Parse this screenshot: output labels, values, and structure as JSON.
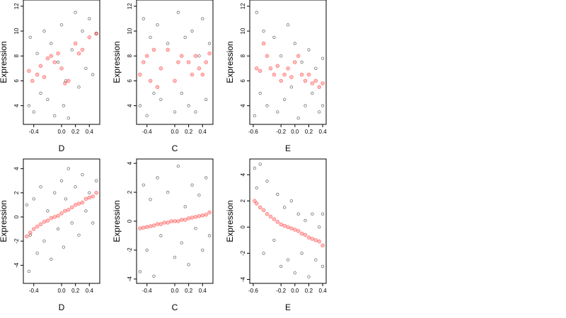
{
  "chart_data": [
    {
      "type": "scatter",
      "xlabel": "D",
      "ylabel": "Expression",
      "xlim": [
        -0.55,
        0.55
      ],
      "ylim": [
        2.5,
        12.5
      ],
      "xticks": [
        "-0.4",
        "0.0",
        "0.2",
        "0.4"
      ],
      "yticks": [
        "4",
        "6",
        "8",
        "10",
        "12"
      ],
      "series": [
        {
          "points": [
            [
              -0.47,
              4.0
            ],
            [
              -0.45,
              9.5
            ],
            [
              -0.4,
              3.5
            ],
            [
              -0.35,
              8.2
            ],
            [
              -0.3,
              5.0
            ],
            [
              -0.25,
              10.0
            ],
            [
              -0.2,
              4.5
            ],
            [
              -0.15,
              9.0
            ],
            [
              -0.1,
              3.2
            ],
            [
              -0.05,
              7.5
            ],
            [
              0.0,
              10.5
            ],
            [
              0.03,
              4.0
            ],
            [
              0.06,
              6.0
            ],
            [
              0.1,
              3.0
            ],
            [
              0.15,
              8.5
            ],
            [
              0.2,
              11.5
            ],
            [
              0.25,
              5.5
            ],
            [
              0.3,
              10.0
            ],
            [
              0.35,
              7.0
            ],
            [
              0.4,
              11.0
            ],
            [
              0.45,
              6.5
            ],
            [
              0.5,
              9.8
            ]
          ]
        },
        {
          "points": [
            [
              -0.47,
              6.8
            ],
            [
              -0.42,
              6.0
            ],
            [
              -0.35,
              6.5
            ],
            [
              -0.3,
              7.2
            ],
            [
              -0.25,
              6.3
            ],
            [
              -0.2,
              7.8
            ],
            [
              -0.15,
              8.0
            ],
            [
              -0.1,
              7.5
            ],
            [
              -0.05,
              8.2
            ],
            [
              0.0,
              7.0
            ],
            [
              0.05,
              5.8
            ],
            [
              0.1,
              6.0
            ],
            [
              0.2,
              9.0
            ],
            [
              0.25,
              8.2
            ],
            [
              0.3,
              8.5
            ],
            [
              0.4,
              9.5
            ],
            [
              0.5,
              9.8
            ]
          ]
        }
      ]
    },
    {
      "type": "scatter",
      "xlabel": "C",
      "ylabel": "Expression",
      "xlim": [
        -0.55,
        0.55
      ],
      "ylim": [
        2.5,
        12.5
      ],
      "xticks": [
        "-0.4",
        "0.0",
        "0.2",
        "0.4"
      ],
      "yticks": [
        "4",
        "6",
        "8",
        "10",
        "12"
      ],
      "series": [
        {
          "points": [
            [
              -0.5,
              4.0
            ],
            [
              -0.45,
              11.0
            ],
            [
              -0.4,
              3.2
            ],
            [
              -0.35,
              9.5
            ],
            [
              -0.3,
              5.0
            ],
            [
              -0.25,
              10.5
            ],
            [
              -0.2,
              4.5
            ],
            [
              -0.1,
              9.0
            ],
            [
              0.0,
              3.5
            ],
            [
              0.05,
              11.5
            ],
            [
              0.1,
              5.0
            ],
            [
              0.15,
              9.5
            ],
            [
              0.2,
              4.0
            ],
            [
              0.25,
              10.0
            ],
            [
              0.3,
              3.5
            ],
            [
              0.35,
              8.0
            ],
            [
              0.4,
              11.0
            ],
            [
              0.45,
              4.5
            ],
            [
              0.5,
              9.0
            ]
          ]
        },
        {
          "points": [
            [
              -0.5,
              6.5
            ],
            [
              -0.45,
              7.5
            ],
            [
              -0.4,
              8.0
            ],
            [
              -0.35,
              6.0
            ],
            [
              -0.3,
              8.5
            ],
            [
              -0.25,
              5.5
            ],
            [
              -0.2,
              7.0
            ],
            [
              -0.1,
              8.5
            ],
            [
              0.0,
              6.0
            ],
            [
              0.05,
              7.5
            ],
            [
              0.1,
              8.0
            ],
            [
              0.2,
              7.5
            ],
            [
              0.25,
              6.5
            ],
            [
              0.3,
              8.0
            ],
            [
              0.35,
              7.0
            ],
            [
              0.4,
              6.5
            ],
            [
              0.45,
              7.5
            ],
            [
              0.5,
              8.2
            ]
          ]
        }
      ]
    },
    {
      "type": "scatter",
      "xlabel": "E",
      "ylabel": "Expression",
      "xlim": [
        -0.65,
        0.45
      ],
      "ylim": [
        2.5,
        12.5
      ],
      "xticks": [
        "-0.6",
        "-0.2",
        "0.0",
        "0.2",
        "0.4"
      ],
      "yticks": [
        "4",
        "6",
        "8",
        "10",
        "12"
      ],
      "series": [
        {
          "points": [
            [
              -0.58,
              3.2
            ],
            [
              -0.55,
              11.5
            ],
            [
              -0.5,
              5.0
            ],
            [
              -0.45,
              10.0
            ],
            [
              -0.4,
              4.0
            ],
            [
              -0.3,
              9.5
            ],
            [
              -0.25,
              3.5
            ],
            [
              -0.2,
              8.0
            ],
            [
              -0.15,
              4.5
            ],
            [
              -0.1,
              10.5
            ],
            [
              -0.05,
              5.5
            ],
            [
              0.0,
              9.0
            ],
            [
              0.05,
              3.0
            ],
            [
              0.1,
              7.5
            ],
            [
              0.15,
              4.0
            ],
            [
              0.2,
              8.5
            ],
            [
              0.25,
              5.0
            ],
            [
              0.3,
              7.0
            ],
            [
              0.35,
              3.5
            ],
            [
              0.4,
              7.8
            ],
            [
              0.4,
              4.0
            ]
          ]
        },
        {
          "points": [
            [
              -0.55,
              7.0
            ],
            [
              -0.5,
              6.8
            ],
            [
              -0.45,
              9.0
            ],
            [
              -0.4,
              8.0
            ],
            [
              -0.35,
              7.0
            ],
            [
              -0.3,
              6.5
            ],
            [
              -0.25,
              7.2
            ],
            [
              -0.2,
              6.0
            ],
            [
              -0.15,
              6.5
            ],
            [
              -0.1,
              7.0
            ],
            [
              -0.05,
              6.3
            ],
            [
              0.0,
              7.5
            ],
            [
              0.05,
              8.0
            ],
            [
              0.1,
              6.5
            ],
            [
              0.15,
              6.0
            ],
            [
              0.2,
              6.5
            ],
            [
              0.25,
              5.8
            ],
            [
              0.3,
              6.0
            ],
            [
              0.35,
              5.5
            ],
            [
              0.4,
              5.8
            ]
          ]
        }
      ]
    },
    {
      "type": "scatter",
      "xlabel": "D",
      "ylabel": "Expression",
      "xlim": [
        -0.55,
        0.55
      ],
      "ylim": [
        -5.5,
        4.8
      ],
      "xticks": [
        "-0.4",
        "0.0",
        "0.2",
        "0.4"
      ],
      "yticks": [
        "-4",
        "-2",
        "0",
        "2",
        "4"
      ],
      "series": [
        {
          "points": [
            [
              -0.5,
              1.0
            ],
            [
              -0.47,
              -4.5
            ],
            [
              -0.45,
              -1.5
            ],
            [
              -0.4,
              1.5
            ],
            [
              -0.35,
              -3.0
            ],
            [
              -0.3,
              2.5
            ],
            [
              -0.25,
              -2.0
            ],
            [
              -0.2,
              0.5
            ],
            [
              -0.15,
              -3.5
            ],
            [
              -0.1,
              2.0
            ],
            [
              -0.05,
              -1.0
            ],
            [
              0.0,
              3.0
            ],
            [
              0.03,
              -2.5
            ],
            [
              0.06,
              1.5
            ],
            [
              0.1,
              4.0
            ],
            [
              0.15,
              -0.5
            ],
            [
              0.2,
              2.5
            ],
            [
              0.25,
              -1.5
            ],
            [
              0.3,
              3.5
            ],
            [
              0.35,
              0.5
            ],
            [
              0.4,
              2.0
            ],
            [
              0.45,
              -0.5
            ],
            [
              0.5,
              3.0
            ]
          ]
        },
        {
          "points": [
            [
              -0.5,
              -1.6
            ],
            [
              -0.45,
              -1.3
            ],
            [
              -0.4,
              -1.0
            ],
            [
              -0.35,
              -0.8
            ],
            [
              -0.3,
              -0.6
            ],
            [
              -0.25,
              -0.4
            ],
            [
              -0.2,
              -0.3
            ],
            [
              -0.15,
              -0.1
            ],
            [
              -0.1,
              0.0
            ],
            [
              -0.05,
              0.1
            ],
            [
              0.0,
              0.3
            ],
            [
              0.05,
              0.5
            ],
            [
              0.1,
              0.6
            ],
            [
              0.15,
              0.8
            ],
            [
              0.2,
              1.0
            ],
            [
              0.25,
              1.1
            ],
            [
              0.3,
              1.2
            ],
            [
              0.35,
              1.5
            ],
            [
              0.4,
              1.6
            ],
            [
              0.45,
              1.7
            ],
            [
              0.5,
              2.0
            ]
          ]
        }
      ]
    },
    {
      "type": "scatter",
      "xlabel": "C",
      "ylabel": "Expression",
      "xlim": [
        -0.55,
        0.55
      ],
      "ylim": [
        -4.3,
        4.3
      ],
      "xticks": [
        "-0.4",
        "0.0",
        "0.2",
        "0.4"
      ],
      "yticks": [
        "-4",
        "-2",
        "0",
        "2",
        "4"
      ],
      "series": [
        {
          "points": [
            [
              -0.5,
              -3.5
            ],
            [
              -0.45,
              2.5
            ],
            [
              -0.4,
              -2.0
            ],
            [
              -0.35,
              1.5
            ],
            [
              -0.3,
              -3.8
            ],
            [
              -0.25,
              3.0
            ],
            [
              -0.2,
              -1.0
            ],
            [
              -0.1,
              2.0
            ],
            [
              0.0,
              -2.5
            ],
            [
              0.05,
              3.8
            ],
            [
              0.1,
              -1.5
            ],
            [
              0.15,
              1.0
            ],
            [
              0.2,
              -3.0
            ],
            [
              0.25,
              2.5
            ],
            [
              0.3,
              -0.5
            ],
            [
              0.35,
              1.8
            ],
            [
              0.4,
              -2.0
            ],
            [
              0.45,
              3.0
            ],
            [
              0.5,
              -1.0
            ]
          ]
        },
        {
          "points": [
            [
              -0.5,
              -0.5
            ],
            [
              -0.45,
              -0.45
            ],
            [
              -0.4,
              -0.4
            ],
            [
              -0.35,
              -0.35
            ],
            [
              -0.3,
              -0.3
            ],
            [
              -0.25,
              -0.2
            ],
            [
              -0.2,
              -0.2
            ],
            [
              -0.15,
              -0.1
            ],
            [
              -0.1,
              -0.1
            ],
            [
              -0.05,
              0.0
            ],
            [
              0.0,
              0.0
            ],
            [
              0.05,
              0.0
            ],
            [
              0.1,
              0.1
            ],
            [
              0.15,
              0.1
            ],
            [
              0.2,
              0.2
            ],
            [
              0.25,
              0.25
            ],
            [
              0.3,
              0.3
            ],
            [
              0.35,
              0.35
            ],
            [
              0.4,
              0.4
            ],
            [
              0.45,
              0.45
            ],
            [
              0.5,
              0.6
            ]
          ]
        }
      ]
    },
    {
      "type": "scatter",
      "xlabel": "E",
      "ylabel": "Expression",
      "xlim": [
        -0.65,
        0.45
      ],
      "ylim": [
        -4.3,
        5.2
      ],
      "xticks": [
        "-0.6",
        "-0.2",
        "0.0",
        "0.2",
        "0.4"
      ],
      "yticks": [
        "-4",
        "-2",
        "0",
        "2",
        "4"
      ],
      "series": [
        {
          "points": [
            [
              -0.58,
              4.5
            ],
            [
              -0.55,
              3.0
            ],
            [
              -0.5,
              4.8
            ],
            [
              -0.45,
              -2.0
            ],
            [
              -0.4,
              3.5
            ],
            [
              -0.3,
              -1.0
            ],
            [
              -0.25,
              2.5
            ],
            [
              -0.2,
              -3.0
            ],
            [
              -0.15,
              1.5
            ],
            [
              -0.1,
              -2.5
            ],
            [
              -0.05,
              2.0
            ],
            [
              0.0,
              -3.5
            ],
            [
              0.05,
              1.0
            ],
            [
              0.1,
              -2.0
            ],
            [
              0.15,
              0.5
            ],
            [
              0.2,
              -3.8
            ],
            [
              0.25,
              1.0
            ],
            [
              0.3,
              -2.5
            ],
            [
              0.35,
              0.0
            ],
            [
              0.4,
              1.0
            ],
            [
              0.4,
              -3.0
            ]
          ]
        },
        {
          "points": [
            [
              -0.58,
              2.0
            ],
            [
              -0.55,
              1.8
            ],
            [
              -0.5,
              1.5
            ],
            [
              -0.45,
              1.3
            ],
            [
              -0.4,
              1.0
            ],
            [
              -0.35,
              0.8
            ],
            [
              -0.3,
              0.6
            ],
            [
              -0.25,
              0.4
            ],
            [
              -0.2,
              0.2
            ],
            [
              -0.15,
              0.1
            ],
            [
              -0.1,
              0.0
            ],
            [
              -0.05,
              -0.1
            ],
            [
              0.0,
              -0.2
            ],
            [
              0.05,
              -0.3
            ],
            [
              0.1,
              -0.5
            ],
            [
              0.15,
              -0.6
            ],
            [
              0.2,
              -0.8
            ],
            [
              0.25,
              -0.9
            ],
            [
              0.3,
              -1.0
            ],
            [
              0.35,
              -1.1
            ],
            [
              0.4,
              -1.4
            ]
          ]
        }
      ]
    }
  ]
}
